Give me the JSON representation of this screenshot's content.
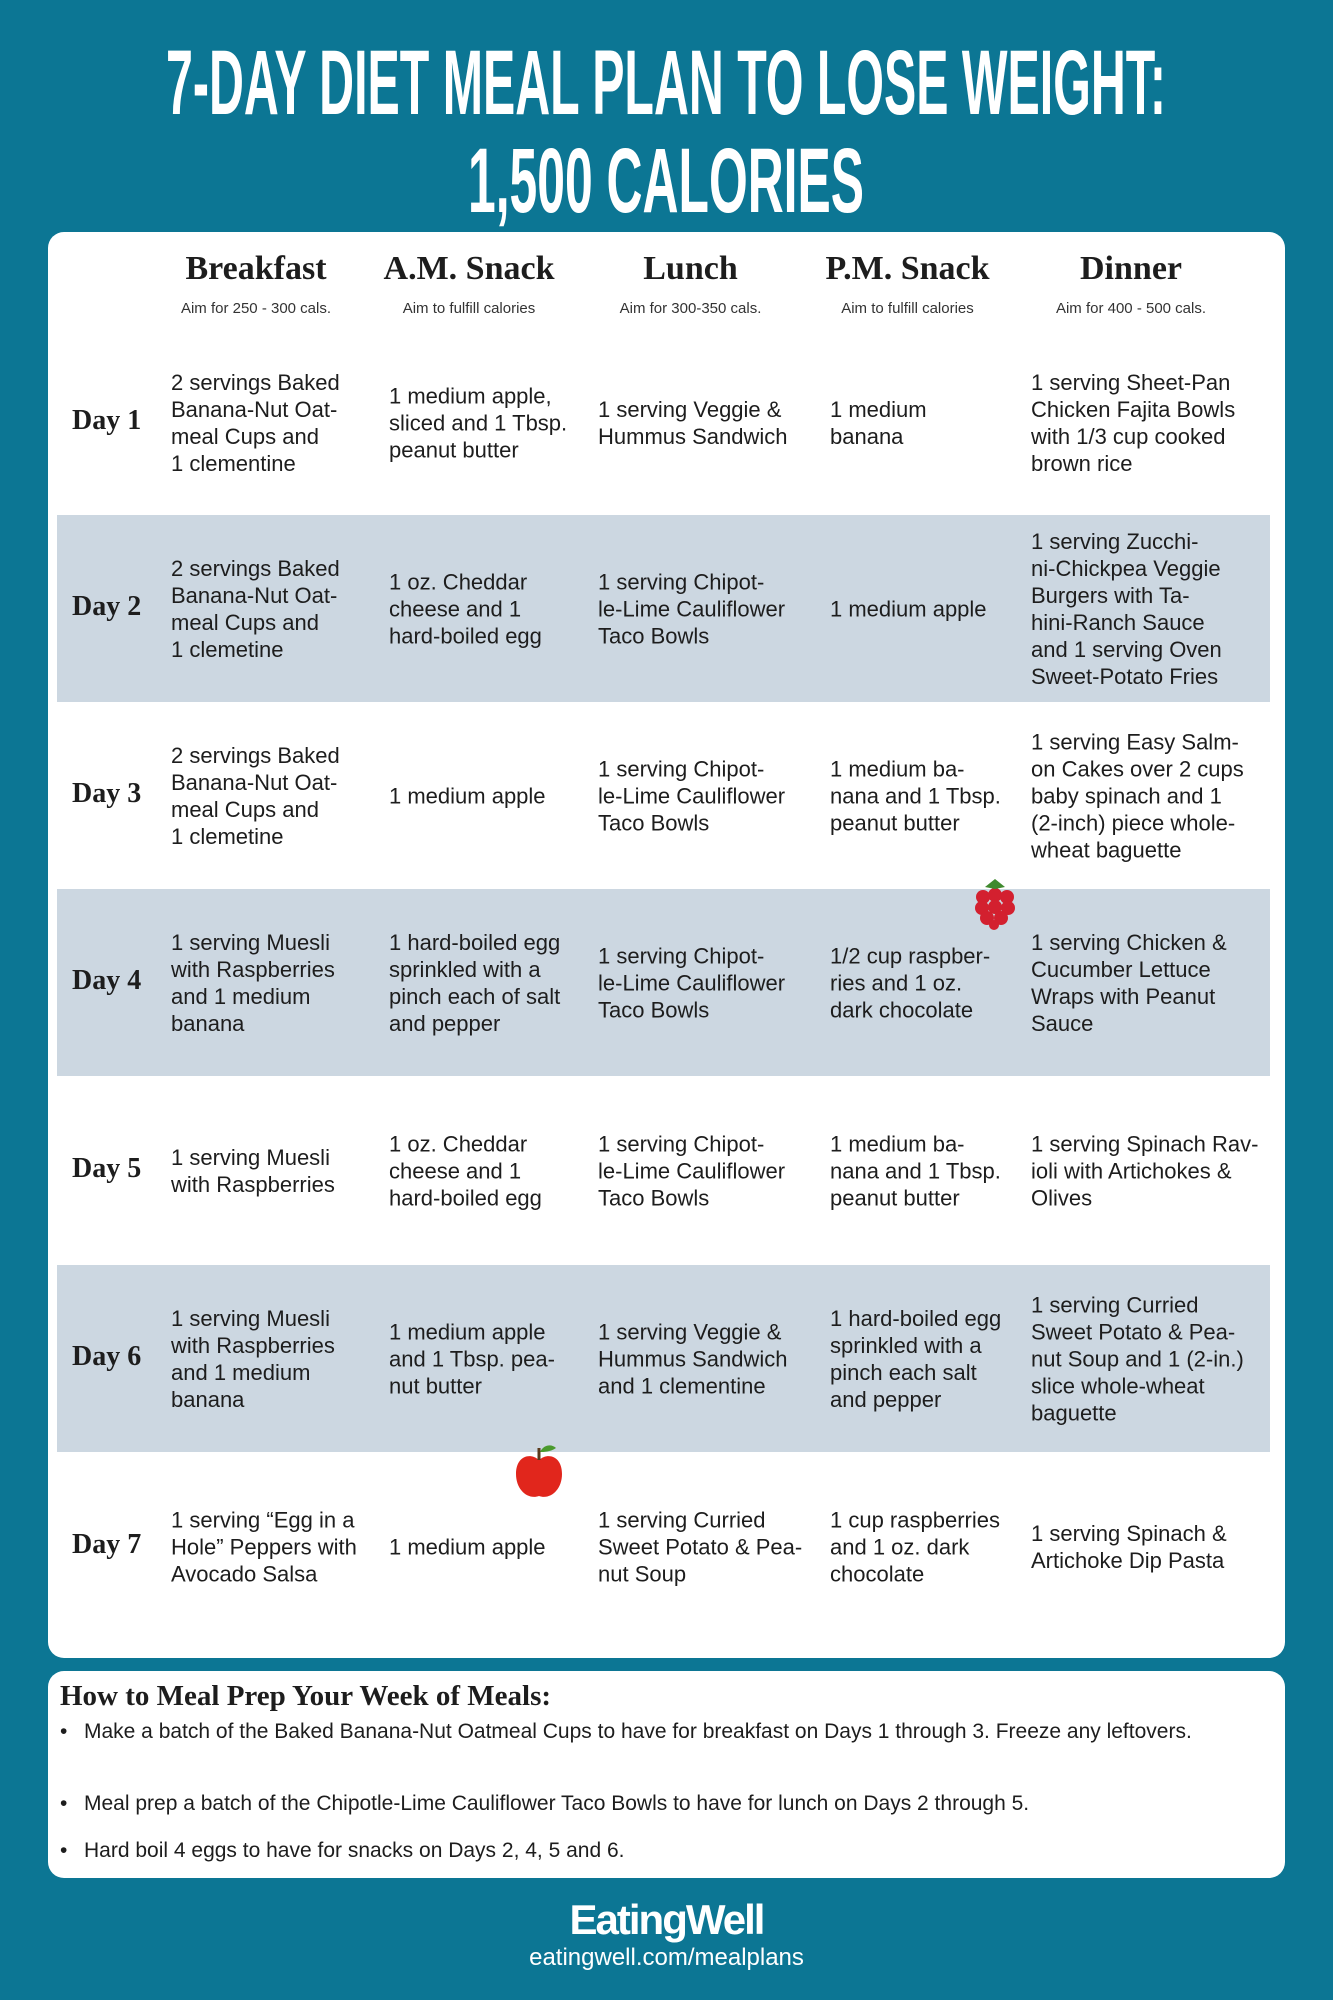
{
  "title": {
    "line1": "7-DAY DIET MEAL PLAN TO LOSE WEIGHT:",
    "line2": "1,500 CALORIES"
  },
  "columns": [
    {
      "label": "Breakfast",
      "sub": "Aim for 250 - 300 cals."
    },
    {
      "label": "A.M. Snack",
      "sub": "Aim to fulfill calories"
    },
    {
      "label": "Lunch",
      "sub": "Aim for 300-350 cals."
    },
    {
      "label": "P.M. Snack",
      "sub": "Aim to fulfill calories"
    },
    {
      "label": "Dinner",
      "sub": "Aim for 400 - 500 cals."
    }
  ],
  "rows": [
    {
      "day": "Day 1",
      "cells": [
        "2 servings Baked\nBanana-Nut Oat-\nmeal Cups and\n1 clementine",
        "1 medium apple,\nsliced and 1 Tbsp.\npeanut butter",
        "1 serving Veggie &\nHummus Sandwich",
        "1 medium\nbanana",
        "1 serving Sheet-Pan\nChicken Fajita Bowls\nwith 1/3 cup cooked\nbrown rice"
      ]
    },
    {
      "day": "Day 2",
      "cells": [
        "2 servings Baked\nBanana-Nut Oat-\nmeal Cups and\n1 clemetine",
        "1 oz. Cheddar\ncheese and 1\nhard-boiled egg",
        "1 serving Chipot-\nle-Lime Cauliflower\nTaco Bowls",
        "1 medium apple",
        "1 serving Zucchi-\nni-Chickpea Veggie\nBurgers with Ta-\nhini-Ranch Sauce\nand 1 serving Oven\nSweet-Potato Fries"
      ]
    },
    {
      "day": "Day 3",
      "cells": [
        "2 servings Baked\nBanana-Nut Oat-\nmeal Cups and\n1 clemetine",
        "1 medium apple",
        "1 serving Chipot-\nle-Lime Cauliflower\nTaco Bowls",
        "1 medium ba-\nnana and 1 Tbsp.\npeanut butter",
        "1 serving Easy Salm-\non Cakes over 2 cups\nbaby spinach and 1\n(2-inch) piece whole-\nwheat baguette"
      ]
    },
    {
      "day": "Day 4",
      "cells": [
        "1 serving Muesli\nwith Raspberries\nand 1 medium\nbanana",
        "1 hard-boiled egg\nsprinkled with a\npinch each of salt\nand pepper",
        "1 serving Chipot-\nle-Lime Cauliflower\nTaco Bowls",
        "1/2 cup raspber-\nries and 1 oz.\ndark chocolate",
        "1 serving Chicken &\nCucumber Lettuce\nWraps with Peanut\nSauce"
      ]
    },
    {
      "day": "Day 5",
      "cells": [
        "1 serving Muesli\nwith Raspberries",
        "1 oz. Cheddar\ncheese and 1\nhard-boiled egg",
        "1 serving Chipot-\nle-Lime Cauliflower\nTaco Bowls",
        "1 medium ba-\nnana and 1 Tbsp.\npeanut butter",
        "1 serving Spinach Rav-\nioli with Artichokes &\nOlives"
      ]
    },
    {
      "day": "Day 6",
      "cells": [
        "1 serving Muesli\nwith Raspberries\nand 1 medium\nbanana",
        "1 medium apple\nand 1 Tbsp. pea-\nnut butter",
        "1 serving Veggie &\nHummus Sandwich\nand 1 clementine",
        "1 hard-boiled egg\nsprinkled with a\npinch each salt\nand pepper",
        "1 serving Curried\nSweet Potato & Pea-\nnut Soup and 1 (2-in.)\nslice whole-wheat\nbaguette"
      ]
    },
    {
      "day": "Day 7",
      "cells": [
        "1 serving “Egg in a\nHole” Peppers with\nAvocado Salsa",
        "1 medium apple",
        "1 serving Curried\nSweet Potato & Pea-\nnut Soup",
        "1 cup raspberries\nand 1 oz. dark\nchocolate",
        "1 serving Spinach &\nArtichoke Dip Pasta"
      ]
    }
  ],
  "prep": {
    "title": "How to Meal Prep Your Week of Meals:",
    "items": [
      "Make a batch of the Baked Banana-Nut Oatmeal Cups to have for breakfast on Days 1 through 3. Freeze any leftovers.",
      "Meal prep a batch of the Chipotle-Lime Cauliflower Taco Bowls to have for lunch on Days 2 through 5.",
      "Hard boil 4 eggs to have for snacks on Days 2, 4, 5 and 6."
    ]
  },
  "footer": {
    "brand": "EatingWell",
    "url": "eatingwell.com/mealplans"
  },
  "colors": {
    "background": "#0c7694",
    "band": "#ccd7e1",
    "card": "#ffffff"
  },
  "icons": [
    "raspberry-icon",
    "apple-icon"
  ]
}
